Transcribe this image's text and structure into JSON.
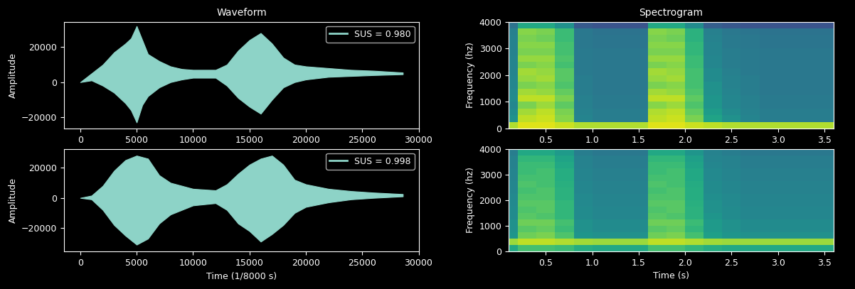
{
  "chart_data": [
    {
      "type": "area",
      "title": "Waveform",
      "ylabel": "Amplitude",
      "x": [
        0,
        1000,
        2000,
        3000,
        4000,
        4500,
        5000,
        5500,
        6000,
        7000,
        8000,
        9000,
        10000,
        11000,
        12000,
        13000,
        14000,
        15000,
        16000,
        17000,
        18000,
        19000,
        20000,
        22000,
        24000,
        26000,
        28600
      ],
      "series": [
        {
          "name": "SUS = 0.980",
          "color": "#8dd3c7",
          "upper": [
            0,
            5000,
            10000,
            17000,
            22000,
            25000,
            32000,
            24000,
            16000,
            12000,
            9000,
            7500,
            7000,
            7000,
            7000,
            10000,
            18000,
            24000,
            28000,
            22000,
            14000,
            10000,
            9000,
            8000,
            7000,
            6500,
            5500
          ],
          "lower": [
            0,
            1000,
            -2000,
            -6000,
            -12000,
            -16000,
            -23000,
            -13000,
            -8000,
            -3000,
            0,
            1500,
            2500,
            2500,
            2500,
            -2000,
            -9000,
            -14000,
            -18000,
            -10000,
            -3000,
            0,
            1500,
            3000,
            3500,
            4000,
            4500
          ]
        }
      ],
      "legend": "upper right",
      "xlim": [
        -1430,
        30030
      ],
      "ylim": [
        -26500,
        34500
      ],
      "xticks": [
        0,
        5000,
        10000,
        15000,
        20000,
        25000,
        30000
      ],
      "yticks": [
        {
          "value": -20000,
          "label": "−20000"
        },
        0,
        20000
      ]
    },
    {
      "type": "area",
      "xlabel": "Time (1/8000 s)",
      "ylabel": "Amplitude",
      "x": [
        0,
        1000,
        2000,
        3000,
        4000,
        5000,
        6000,
        7000,
        8000,
        10000,
        12000,
        13000,
        14000,
        15000,
        16000,
        17000,
        18000,
        19000,
        20000,
        22000,
        24000,
        26000,
        28600
      ],
      "series": [
        {
          "name": "SUS = 0.998",
          "color": "#8dd3c7",
          "upper": [
            0,
            1500,
            8000,
            18000,
            25000,
            28000,
            26000,
            15000,
            10000,
            6000,
            5000,
            9000,
            16000,
            22000,
            26000,
            28000,
            22000,
            12000,
            9000,
            6000,
            4500,
            3500,
            2500
          ],
          "lower": [
            0,
            -1000,
            -8000,
            -18000,
            -25000,
            -31000,
            -27000,
            -17000,
            -11000,
            -5000,
            -3500,
            -8000,
            -17000,
            -22000,
            -29000,
            -24000,
            -18000,
            -10000,
            -6000,
            -3000,
            -1000,
            0,
            1000
          ]
        }
      ],
      "legend": "upper right",
      "xlim": [
        -1430,
        30030
      ],
      "ylim": [
        -35500,
        32500
      ],
      "xticks": [
        0,
        5000,
        10000,
        15000,
        20000,
        25000,
        30000
      ],
      "yticks": [
        {
          "value": -20000,
          "label": "−20000"
        },
        0,
        20000
      ]
    },
    {
      "type": "heatmap",
      "title": "Spectrogram",
      "ylabel": "Frequency (hz)",
      "x_edges": [
        0.0,
        0.2,
        0.4,
        0.6,
        0.8,
        1.0,
        1.2,
        1.4,
        1.6,
        1.8,
        2.0,
        2.2,
        2.4,
        2.6,
        2.8,
        3.0,
        3.2,
        3.4,
        3.6
      ],
      "y_edges": [
        0,
        250,
        500,
        750,
        1000,
        1250,
        1500,
        1750,
        2000,
        2250,
        2500,
        2750,
        3000,
        3250,
        3500,
        3750,
        4000
      ],
      "color_range": [
        0,
        1
      ],
      "cells": [
        [
          0.88,
          0.95,
          0.95,
          0.92,
          0.88,
          0.88,
          0.88,
          0.88,
          0.95,
          0.95,
          0.92,
          0.9,
          0.88,
          0.88,
          0.88,
          0.88,
          0.88,
          0.88
        ],
        [
          0.5,
          0.9,
          0.92,
          0.82,
          0.45,
          0.42,
          0.42,
          0.42,
          0.9,
          0.92,
          0.8,
          0.58,
          0.5,
          0.45,
          0.42,
          0.42,
          0.42,
          0.42
        ],
        [
          0.48,
          0.86,
          0.9,
          0.8,
          0.44,
          0.42,
          0.42,
          0.42,
          0.88,
          0.9,
          0.76,
          0.55,
          0.48,
          0.44,
          0.42,
          0.42,
          0.42,
          0.42
        ],
        [
          0.46,
          0.8,
          0.85,
          0.75,
          0.43,
          0.41,
          0.41,
          0.41,
          0.82,
          0.85,
          0.72,
          0.52,
          0.46,
          0.43,
          0.41,
          0.41,
          0.41,
          0.41
        ],
        [
          0.48,
          0.9,
          0.9,
          0.8,
          0.43,
          0.41,
          0.41,
          0.41,
          0.9,
          0.9,
          0.75,
          0.52,
          0.46,
          0.43,
          0.41,
          0.41,
          0.41,
          0.41
        ],
        [
          0.47,
          0.86,
          0.84,
          0.76,
          0.42,
          0.4,
          0.4,
          0.4,
          0.86,
          0.84,
          0.72,
          0.5,
          0.45,
          0.42,
          0.4,
          0.4,
          0.4,
          0.4
        ],
        [
          0.46,
          0.8,
          0.82,
          0.72,
          0.42,
          0.4,
          0.4,
          0.4,
          0.8,
          0.82,
          0.7,
          0.5,
          0.44,
          0.42,
          0.4,
          0.4,
          0.4,
          0.4
        ],
        [
          0.46,
          0.84,
          0.86,
          0.74,
          0.42,
          0.4,
          0.4,
          0.4,
          0.84,
          0.86,
          0.7,
          0.48,
          0.44,
          0.42,
          0.4,
          0.4,
          0.4,
          0.4
        ],
        [
          0.45,
          0.86,
          0.84,
          0.74,
          0.41,
          0.4,
          0.4,
          0.4,
          0.86,
          0.84,
          0.7,
          0.48,
          0.43,
          0.41,
          0.4,
          0.4,
          0.4,
          0.4
        ],
        [
          0.45,
          0.8,
          0.82,
          0.7,
          0.41,
          0.4,
          0.4,
          0.4,
          0.8,
          0.82,
          0.68,
          0.46,
          0.42,
          0.41,
          0.4,
          0.4,
          0.4,
          0.4
        ],
        [
          0.45,
          0.84,
          0.84,
          0.72,
          0.41,
          0.4,
          0.4,
          0.4,
          0.84,
          0.84,
          0.68,
          0.46,
          0.42,
          0.41,
          0.4,
          0.4,
          0.4,
          0.4
        ],
        [
          0.44,
          0.8,
          0.8,
          0.7,
          0.41,
          0.4,
          0.4,
          0.4,
          0.8,
          0.8,
          0.66,
          0.45,
          0.42,
          0.41,
          0.4,
          0.4,
          0.4,
          0.4
        ],
        [
          0.44,
          0.82,
          0.82,
          0.7,
          0.4,
          0.39,
          0.39,
          0.39,
          0.82,
          0.82,
          0.66,
          0.45,
          0.41,
          0.4,
          0.39,
          0.39,
          0.39,
          0.39
        ],
        [
          0.44,
          0.8,
          0.78,
          0.68,
          0.4,
          0.39,
          0.39,
          0.39,
          0.8,
          0.78,
          0.64,
          0.44,
          0.41,
          0.4,
          0.39,
          0.39,
          0.39,
          0.39
        ],
        [
          0.43,
          0.82,
          0.8,
          0.68,
          0.4,
          0.38,
          0.38,
          0.38,
          0.82,
          0.8,
          0.64,
          0.43,
          0.4,
          0.39,
          0.38,
          0.38,
          0.38,
          0.38
        ],
        [
          0.38,
          0.6,
          0.6,
          0.5,
          0.28,
          0.26,
          0.26,
          0.26,
          0.6,
          0.6,
          0.48,
          0.3,
          0.27,
          0.26,
          0.26,
          0.26,
          0.26,
          0.26
        ]
      ],
      "xlim": [
        0.1,
        3.6
      ],
      "ylim": [
        0,
        4000
      ],
      "xticks": [
        0.5,
        1.0,
        1.5,
        2.0,
        2.5,
        3.0,
        3.5
      ],
      "yticks": [
        0,
        1000,
        2000,
        3000,
        4000
      ]
    },
    {
      "type": "heatmap",
      "xlabel": "Time (s)",
      "ylabel": "Frequency (hz)",
      "x_edges": [
        0.0,
        0.2,
        0.4,
        0.6,
        0.8,
        1.0,
        1.2,
        1.4,
        1.6,
        1.8,
        2.0,
        2.2,
        2.4,
        2.6,
        2.8,
        3.0,
        3.2,
        3.4,
        3.6
      ],
      "y_edges": [
        0,
        250,
        500,
        750,
        1000,
        1250,
        1500,
        1750,
        2000,
        2250,
        2500,
        2750,
        3000,
        3250,
        3500,
        3750,
        4000
      ],
      "color_range": [
        0,
        1
      ],
      "cells": [
        [
          0.6,
          0.7,
          0.7,
          0.68,
          0.62,
          0.6,
          0.6,
          0.6,
          0.7,
          0.7,
          0.66,
          0.62,
          0.6,
          0.6,
          0.6,
          0.6,
          0.6,
          0.6
        ],
        [
          0.85,
          0.9,
          0.9,
          0.88,
          0.86,
          0.85,
          0.85,
          0.85,
          0.9,
          0.9,
          0.88,
          0.86,
          0.85,
          0.85,
          0.85,
          0.85,
          0.85,
          0.85
        ],
        [
          0.52,
          0.78,
          0.8,
          0.72,
          0.52,
          0.5,
          0.5,
          0.5,
          0.78,
          0.8,
          0.7,
          0.56,
          0.52,
          0.5,
          0.5,
          0.5,
          0.5,
          0.5
        ],
        [
          0.5,
          0.74,
          0.76,
          0.68,
          0.5,
          0.48,
          0.48,
          0.48,
          0.74,
          0.76,
          0.66,
          0.54,
          0.5,
          0.48,
          0.48,
          0.48,
          0.48,
          0.48
        ],
        [
          0.5,
          0.78,
          0.78,
          0.7,
          0.5,
          0.48,
          0.48,
          0.48,
          0.78,
          0.78,
          0.68,
          0.54,
          0.5,
          0.48,
          0.48,
          0.48,
          0.48,
          0.48
        ],
        [
          0.48,
          0.74,
          0.72,
          0.66,
          0.48,
          0.46,
          0.46,
          0.46,
          0.74,
          0.72,
          0.64,
          0.52,
          0.48,
          0.46,
          0.46,
          0.46,
          0.46,
          0.46
        ],
        [
          0.48,
          0.72,
          0.74,
          0.66,
          0.48,
          0.46,
          0.46,
          0.46,
          0.72,
          0.74,
          0.64,
          0.5,
          0.48,
          0.46,
          0.46,
          0.46,
          0.46,
          0.46
        ],
        [
          0.47,
          0.74,
          0.74,
          0.66,
          0.47,
          0.45,
          0.45,
          0.45,
          0.74,
          0.74,
          0.63,
          0.5,
          0.47,
          0.45,
          0.45,
          0.45,
          0.45,
          0.45
        ],
        [
          0.47,
          0.72,
          0.72,
          0.64,
          0.47,
          0.45,
          0.45,
          0.45,
          0.72,
          0.72,
          0.62,
          0.49,
          0.47,
          0.45,
          0.45,
          0.45,
          0.45,
          0.45
        ],
        [
          0.46,
          0.7,
          0.72,
          0.64,
          0.46,
          0.44,
          0.44,
          0.44,
          0.7,
          0.72,
          0.62,
          0.48,
          0.46,
          0.44,
          0.44,
          0.44,
          0.44,
          0.44
        ],
        [
          0.46,
          0.72,
          0.7,
          0.63,
          0.46,
          0.44,
          0.44,
          0.44,
          0.72,
          0.7,
          0.61,
          0.48,
          0.46,
          0.44,
          0.44,
          0.44,
          0.44,
          0.44
        ],
        [
          0.45,
          0.7,
          0.7,
          0.62,
          0.45,
          0.43,
          0.43,
          0.43,
          0.7,
          0.7,
          0.6,
          0.47,
          0.45,
          0.43,
          0.43,
          0.43,
          0.43,
          0.43
        ],
        [
          0.45,
          0.68,
          0.7,
          0.62,
          0.45,
          0.43,
          0.43,
          0.43,
          0.68,
          0.7,
          0.6,
          0.47,
          0.45,
          0.43,
          0.43,
          0.43,
          0.43,
          0.43
        ],
        [
          0.44,
          0.68,
          0.68,
          0.6,
          0.44,
          0.42,
          0.42,
          0.42,
          0.68,
          0.68,
          0.58,
          0.46,
          0.44,
          0.42,
          0.42,
          0.42,
          0.42,
          0.42
        ],
        [
          0.44,
          0.66,
          0.66,
          0.58,
          0.44,
          0.42,
          0.42,
          0.42,
          0.66,
          0.66,
          0.56,
          0.45,
          0.44,
          0.42,
          0.42,
          0.42,
          0.42,
          0.42
        ],
        [
          0.42,
          0.6,
          0.6,
          0.54,
          0.42,
          0.4,
          0.4,
          0.4,
          0.6,
          0.6,
          0.52,
          0.44,
          0.42,
          0.4,
          0.4,
          0.4,
          0.4,
          0.4
        ]
      ],
      "xlim": [
        0.1,
        3.6
      ],
      "ylim": [
        0,
        4000
      ],
      "xticks": [
        0.5,
        1.0,
        1.5,
        2.0,
        2.5,
        3.0,
        3.5
      ],
      "yticks": [
        0,
        1000,
        2000,
        3000,
        4000
      ]
    }
  ]
}
